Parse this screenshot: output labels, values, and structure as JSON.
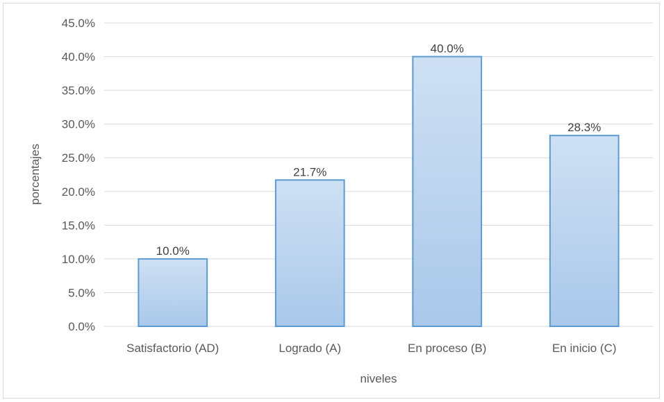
{
  "chart_data": {
    "type": "bar",
    "title": "",
    "xlabel": "niveles",
    "ylabel": "porcentajes",
    "categories": [
      "Satisfactorio (AD)",
      "Logrado (A)",
      "En proceso (B)",
      "En inicio (C)"
    ],
    "values": [
      10.0,
      21.7,
      40.0,
      28.3
    ],
    "data_labels": [
      "10.0%",
      "21.7%",
      "40.0%",
      "28.3%"
    ],
    "ylim": [
      0,
      45
    ],
    "yticks": [
      0,
      5,
      10,
      15,
      20,
      25,
      30,
      35,
      40,
      45
    ],
    "ytick_labels": [
      "0.0%",
      "5.0%",
      "10.0%",
      "15.0%",
      "20.0%",
      "25.0%",
      "30.0%",
      "35.0%",
      "40.0%",
      "45.0%"
    ],
    "grid": true,
    "legend": "none",
    "colors": {
      "bar_top": "#cfe0f3",
      "bar_bottom": "#a9c8ea",
      "bar_border": "#5b9bd5",
      "gridline": "#d9d9d9",
      "text": "#595959"
    }
  }
}
